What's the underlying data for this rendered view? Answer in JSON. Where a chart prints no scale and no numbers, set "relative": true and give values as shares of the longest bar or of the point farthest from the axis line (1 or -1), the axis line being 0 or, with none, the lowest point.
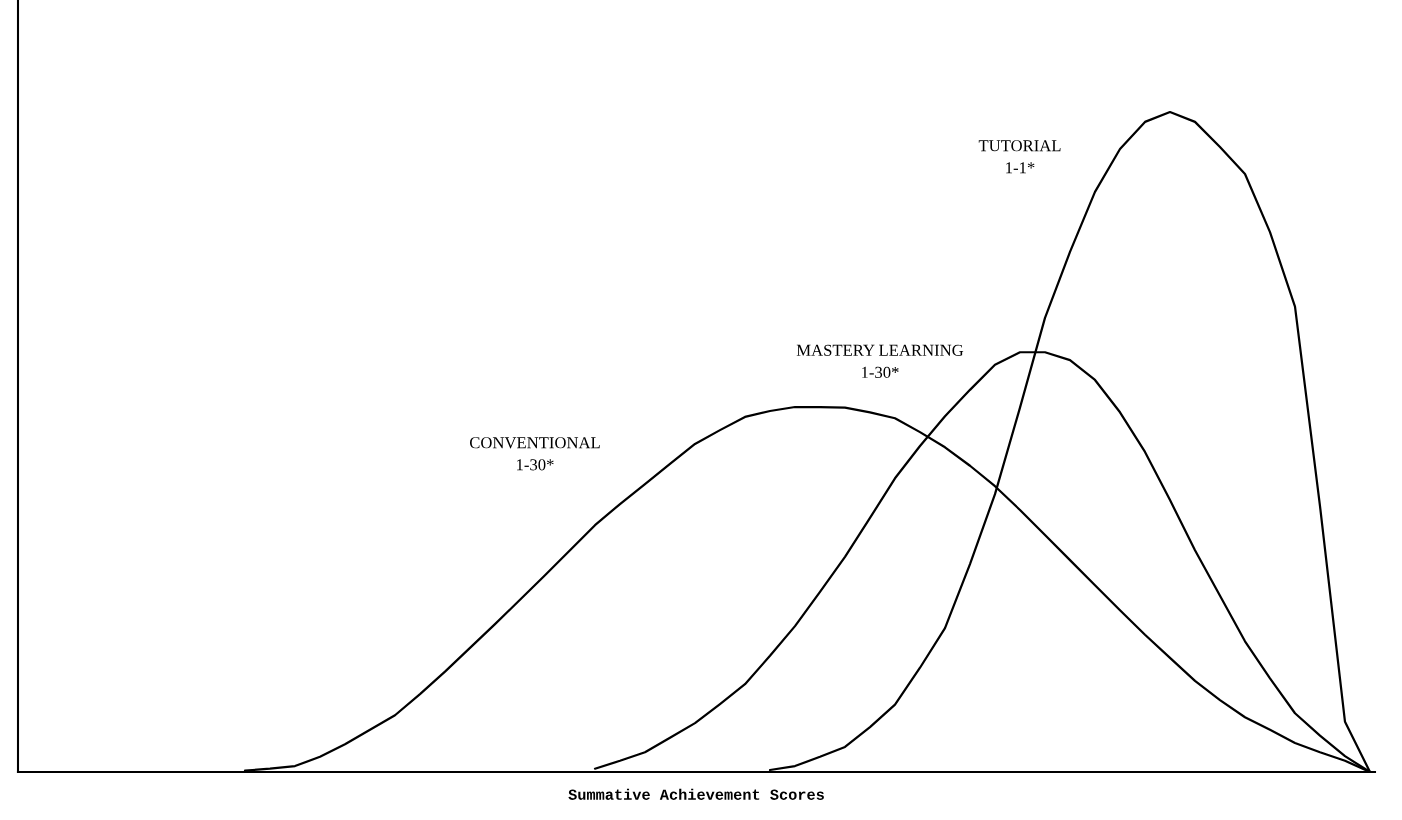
{
  "chart_data": {
    "type": "line",
    "relative": true,
    "xlabel": "Summative Achievement Scores",
    "legend": false,
    "marker": "none",
    "line_style": "solid",
    "categories": [
      null,
      null,
      null,
      null,
      null,
      null,
      null,
      null,
      null,
      null,
      null,
      null,
      null,
      null,
      null,
      null,
      null,
      null,
      null,
      null,
      null,
      null,
      null,
      null,
      null,
      null,
      null,
      null,
      null,
      null,
      null,
      null,
      null,
      null,
      null,
      null,
      null,
      null,
      null,
      null,
      null,
      null,
      null,
      null,
      null,
      null,
      null,
      null,
      null,
      null,
      null,
      null,
      null,
      null,
      null
    ],
    "series": [
      {
        "name": "CONVENTIONAL\n1-30*",
        "color": "#000000",
        "values": [
          null,
          null,
          null,
          null,
          null,
          null,
          null,
          null,
          null,
          0.002,
          0.005,
          0.009,
          0.023,
          0.042,
          0.064,
          0.086,
          0.118,
          0.152,
          0.188,
          0.224,
          0.261,
          0.298,
          0.336,
          0.374,
          0.406,
          0.436,
          0.467,
          0.497,
          0.518,
          0.538,
          0.547,
          0.553,
          0.553,
          0.552,
          0.545,
          0.536,
          0.515,
          0.492,
          0.464,
          0.433,
          0.397,
          0.359,
          0.321,
          0.283,
          0.245,
          0.208,
          0.173,
          0.138,
          0.109,
          0.083,
          0.064,
          0.044,
          0.03,
          0.017,
          0
        ]
      },
      {
        "name": "MASTERY LEARNING\n1-30*",
        "color": "#000000",
        "values": [
          null,
          null,
          null,
          null,
          null,
          null,
          null,
          null,
          null,
          null,
          null,
          null,
          null,
          null,
          null,
          null,
          null,
          null,
          null,
          null,
          null,
          null,
          null,
          0.005,
          0.017,
          0.03,
          0.052,
          0.074,
          0.103,
          0.133,
          0.176,
          0.221,
          0.273,
          0.326,
          0.385,
          0.445,
          0.494,
          0.539,
          0.579,
          0.617,
          0.636,
          0.636,
          0.624,
          0.594,
          0.545,
          0.485,
          0.412,
          0.336,
          0.267,
          0.198,
          0.142,
          0.089,
          0.055,
          0.024,
          0
        ]
      },
      {
        "name": "TUTORIAL\n1-1*",
        "color": "#000000",
        "values": [
          null,
          null,
          null,
          null,
          null,
          null,
          null,
          null,
          null,
          null,
          null,
          null,
          null,
          null,
          null,
          null,
          null,
          null,
          null,
          null,
          null,
          null,
          null,
          null,
          null,
          null,
          null,
          null,
          null,
          null,
          0.003,
          0.009,
          0.023,
          0.038,
          0.068,
          0.102,
          0.158,
          0.218,
          0.315,
          0.421,
          0.552,
          0.688,
          0.788,
          0.879,
          0.944,
          0.985,
          1.0,
          0.985,
          0.947,
          0.906,
          0.818,
          0.705,
          0.403,
          0.076,
          0
        ]
      }
    ]
  }
}
